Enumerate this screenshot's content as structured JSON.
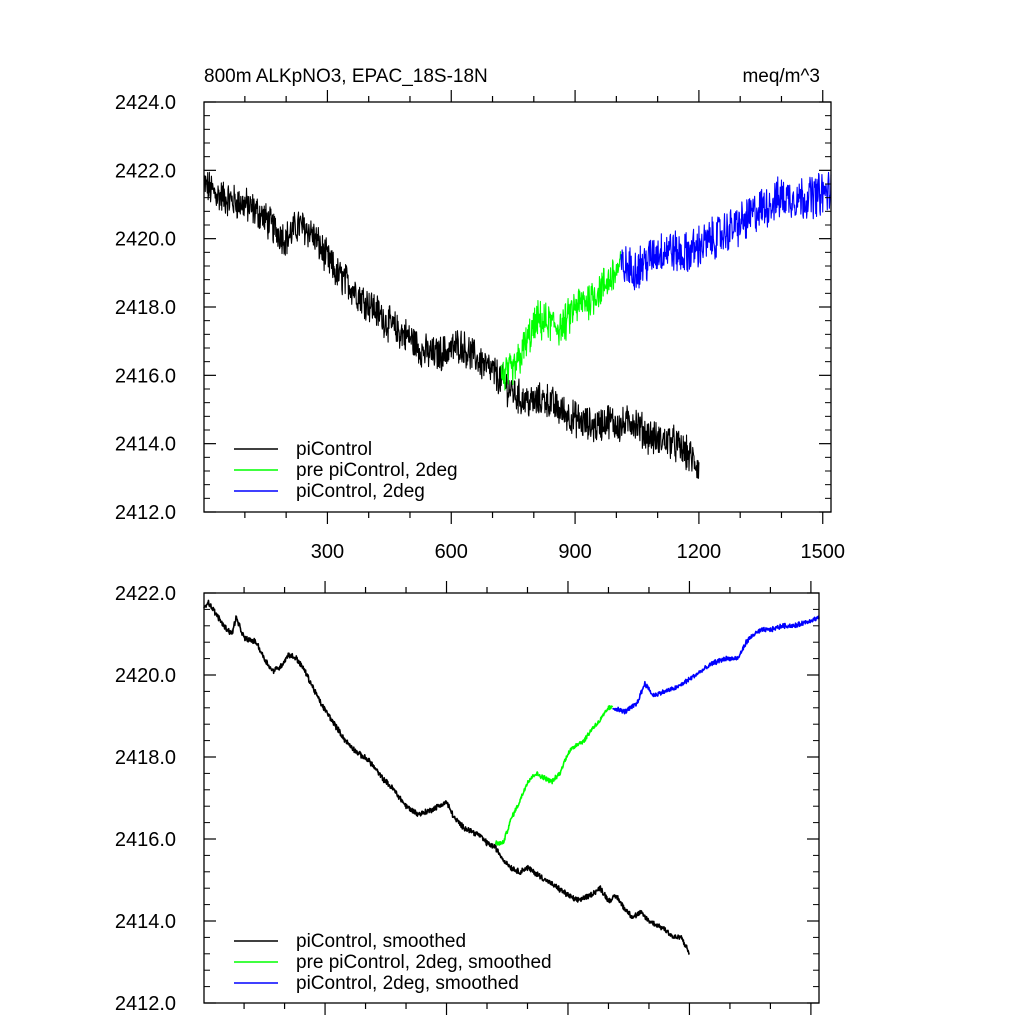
{
  "chart_data": [
    {
      "type": "line",
      "title": "800m ALKpNO3, EPAC_18S-18N",
      "units": "meq/m^3",
      "xlim": [
        1,
        1520
      ],
      "ylim": [
        2412.0,
        2424.0
      ],
      "x_ticks": [
        300,
        600,
        900,
        1200,
        1500
      ],
      "y_ticks": [
        "2412.0",
        "2414.0",
        "2416.0",
        "2418.0",
        "2420.0",
        "2422.0",
        "2424.0"
      ],
      "legend_placement": "bottom-left",
      "grid": false,
      "series": [
        {
          "name": "piControl",
          "color": "#000000",
          "noise": 0.45,
          "x": [
            1,
            30,
            70,
            100,
            140,
            170,
            200,
            230,
            260,
            290,
            320,
            350,
            380,
            410,
            440,
            470,
            500,
            530,
            560,
            590,
            620,
            650,
            680,
            710,
            740,
            770,
            800,
            830,
            860,
            890,
            920,
            950,
            980,
            1010,
            1040,
            1070,
            1100,
            1130,
            1160,
            1180,
            1200
          ],
          "y": [
            2421.6,
            2421.3,
            2421.1,
            2421.0,
            2420.7,
            2420.3,
            2420.0,
            2420.4,
            2420.2,
            2419.6,
            2419.0,
            2418.7,
            2418.3,
            2418.0,
            2417.6,
            2417.3,
            2417.1,
            2416.7,
            2416.6,
            2416.7,
            2416.9,
            2416.6,
            2416.3,
            2416.0,
            2415.6,
            2415.3,
            2415.2,
            2415.3,
            2415.0,
            2414.8,
            2414.6,
            2414.5,
            2414.7,
            2414.5,
            2414.7,
            2414.3,
            2414.1,
            2414.1,
            2413.8,
            2413.6,
            2413.3
          ]
        },
        {
          "name": "pre piControl, 2deg",
          "color": "#00ff00",
          "noise": 0.5,
          "x": [
            721,
            750,
            780,
            810,
            840,
            870,
            900,
            930,
            960,
            990,
            1010
          ],
          "y": [
            2416.0,
            2416.1,
            2416.9,
            2417.6,
            2417.5,
            2417.4,
            2418.0,
            2418.2,
            2418.5,
            2418.9,
            2419.2
          ]
        },
        {
          "name": "piControl, 2deg",
          "color": "#0000ff",
          "noise": 0.55,
          "x": [
            1011,
            1040,
            1070,
            1100,
            1130,
            1160,
            1190,
            1220,
            1250,
            1280,
            1310,
            1340,
            1370,
            1400,
            1430,
            1460,
            1490,
            1520
          ],
          "y": [
            2419.2,
            2419.1,
            2419.3,
            2419.6,
            2419.7,
            2419.5,
            2419.7,
            2419.9,
            2420.1,
            2420.3,
            2420.5,
            2420.8,
            2421.0,
            2421.2,
            2421.2,
            2421.2,
            2421.3,
            2421.4
          ]
        }
      ]
    },
    {
      "type": "line",
      "xlim": [
        1,
        1520
      ],
      "ylim": [
        2412.0,
        2422.0
      ],
      "y_ticks": [
        "2412.0",
        "2414.0",
        "2416.0",
        "2418.0",
        "2420.0",
        "2422.0"
      ],
      "legend_placement": "bottom-left",
      "grid": false,
      "series": [
        {
          "name": "piControl, smoothed",
          "color": "#000000",
          "noise": 0.06,
          "x": [
            1,
            10,
            30,
            50,
            70,
            80,
            100,
            130,
            150,
            170,
            190,
            210,
            230,
            250,
            270,
            290,
            310,
            330,
            350,
            380,
            410,
            440,
            470,
            500,
            530,
            560,
            580,
            600,
            620,
            640,
            660,
            680,
            700,
            720,
            740,
            760,
            780,
            800,
            830,
            860,
            890,
            920,
            950,
            980,
            1000,
            1020,
            1040,
            1060,
            1080,
            1100,
            1120,
            1140,
            1160,
            1180,
            1200
          ],
          "y": [
            2421.6,
            2421.8,
            2421.5,
            2421.2,
            2421.0,
            2421.4,
            2420.9,
            2420.8,
            2420.4,
            2420.1,
            2420.2,
            2420.5,
            2420.4,
            2420.1,
            2419.7,
            2419.3,
            2419.0,
            2418.7,
            2418.4,
            2418.1,
            2417.9,
            2417.5,
            2417.2,
            2416.8,
            2416.6,
            2416.7,
            2416.8,
            2416.9,
            2416.5,
            2416.3,
            2416.2,
            2416.1,
            2415.9,
            2415.8,
            2415.5,
            2415.3,
            2415.2,
            2415.3,
            2415.1,
            2414.9,
            2414.7,
            2414.5,
            2414.6,
            2414.8,
            2414.5,
            2414.6,
            2414.3,
            2414.1,
            2414.2,
            2414.0,
            2413.9,
            2413.8,
            2413.6,
            2413.6,
            2413.2
          ]
        },
        {
          "name": "pre piControl, 2deg, smoothed",
          "color": "#00ff00",
          "noise": 0.05,
          "x": [
            721,
            740,
            760,
            780,
            800,
            820,
            840,
            860,
            880,
            900,
            920,
            940,
            960,
            980,
            1000,
            1010
          ],
          "y": [
            2415.9,
            2415.9,
            2416.5,
            2416.9,
            2417.4,
            2417.6,
            2417.5,
            2417.4,
            2417.6,
            2418.1,
            2418.3,
            2418.4,
            2418.7,
            2418.9,
            2419.2,
            2419.2
          ]
        },
        {
          "name": "piControl, 2deg, smoothed",
          "color": "#0000ff",
          "noise": 0.05,
          "x": [
            1011,
            1040,
            1070,
            1090,
            1110,
            1140,
            1170,
            1200,
            1230,
            1260,
            1290,
            1320,
            1340,
            1360,
            1380,
            1400,
            1430,
            1460,
            1490,
            1520
          ],
          "y": [
            2419.2,
            2419.1,
            2419.3,
            2419.8,
            2419.5,
            2419.6,
            2419.7,
            2419.9,
            2420.1,
            2420.3,
            2420.4,
            2420.4,
            2420.8,
            2421.0,
            2421.1,
            2421.1,
            2421.2,
            2421.2,
            2421.3,
            2421.4
          ]
        }
      ]
    }
  ]
}
